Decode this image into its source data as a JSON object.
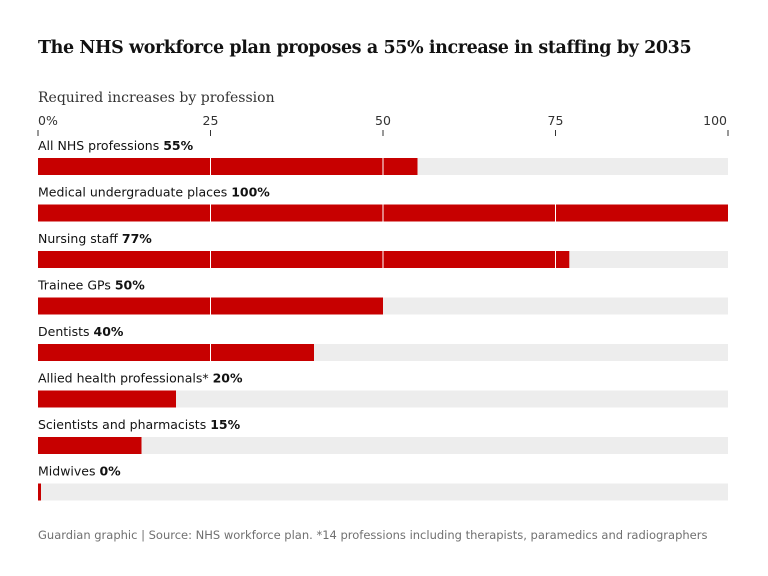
{
  "header": {
    "title": "The NHS workforce plan proposes a 55% increase in staffing by 2035",
    "subtitle": "Required increases by profession"
  },
  "footer": {
    "source": "Guardian graphic | Source: NHS workforce plan. *14 professions including therapists, paramedics and radiographers"
  },
  "colors": {
    "bar": "#c70000",
    "track": "#ededed",
    "gridline": "#ffffff",
    "tick": "#333333"
  },
  "chart_data": {
    "type": "bar",
    "orientation": "horizontal",
    "title": "The NHS workforce plan proposes a 55% increase in staffing by 2035",
    "subtitle": "Required increases by profession",
    "xlim": [
      0,
      100
    ],
    "ticks": [
      0,
      25,
      50,
      75,
      100
    ],
    "tick_labels": [
      "0%",
      "25",
      "50",
      "75",
      "100"
    ],
    "grid": true,
    "categories": [
      "All NHS professions",
      "Medical undergraduate places",
      "Nursing staff",
      "Trainee GPs",
      "Dentists",
      "Allied health professionals*",
      "Scientists and pharmacists",
      "Midwives"
    ],
    "values": [
      55,
      100,
      77,
      50,
      40,
      20,
      15,
      0
    ],
    "value_labels": [
      "55%",
      "100%",
      "77%",
      "50%",
      "40%",
      "20%",
      "15%",
      "0%"
    ]
  }
}
